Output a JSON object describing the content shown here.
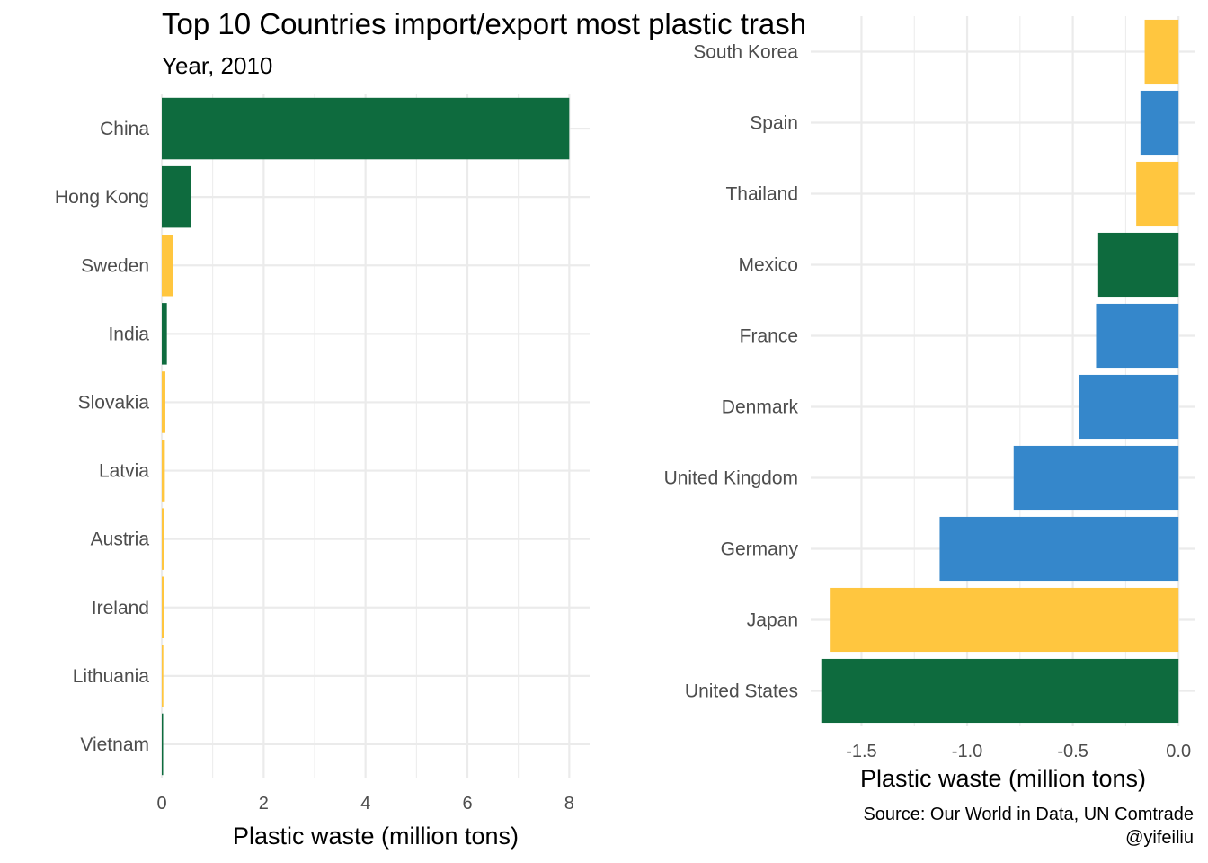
{
  "title": "Top 10 Countries import/export most plastic trash",
  "subtitle": "Year, 2010",
  "caption": {
    "line1": "Source: Our World in Data, UN Comtrade",
    "line2": "@yifeiliu"
  },
  "colors": {
    "green": "#0E6B3E",
    "yellow": "#FFC63F",
    "blue": "#3587CB",
    "grid": "#EBEBEB",
    "tick_text": "#4D4D4D"
  },
  "chart_data": [
    {
      "type": "bar",
      "orientation": "horizontal",
      "title": "",
      "xlabel": "Plastic waste (million tons)",
      "ylabel": "",
      "xlim": [
        0,
        8.4
      ],
      "xticks": [
        0,
        2,
        4,
        6,
        8
      ],
      "grid": true,
      "categories": [
        "China",
        "Hong Kong",
        "Sweden",
        "India",
        "Slovakia",
        "Latvia",
        "Austria",
        "Ireland",
        "Lithuania",
        "Vietnam"
      ],
      "values": [
        8.0,
        0.58,
        0.22,
        0.1,
        0.07,
        0.06,
        0.05,
        0.04,
        0.03,
        0.02
      ],
      "bar_colors": [
        "green",
        "green",
        "yellow",
        "green",
        "yellow",
        "yellow",
        "yellow",
        "yellow",
        "yellow",
        "green"
      ]
    },
    {
      "type": "bar",
      "orientation": "horizontal",
      "title": "",
      "xlabel": "Plastic waste (million tons)",
      "ylabel": "",
      "xlim": [
        -1.74,
        0.08
      ],
      "xticks": [
        -1.5,
        -1.0,
        -0.5,
        0.0
      ],
      "xtick_labels": [
        "-1.5",
        "-1.0",
        "-0.5",
        "0.0"
      ],
      "grid": true,
      "categories": [
        "South Korea",
        "Spain",
        "Thailand",
        "Mexico",
        "France",
        "Denmark",
        "United Kingdom",
        "Germany",
        "Japan",
        "United States"
      ],
      "values": [
        -0.16,
        -0.18,
        -0.2,
        -0.38,
        -0.39,
        -0.47,
        -0.78,
        -1.13,
        -1.65,
        -1.69
      ],
      "bar_colors": [
        "yellow",
        "blue",
        "yellow",
        "green",
        "blue",
        "blue",
        "blue",
        "blue",
        "yellow",
        "green"
      ]
    }
  ]
}
